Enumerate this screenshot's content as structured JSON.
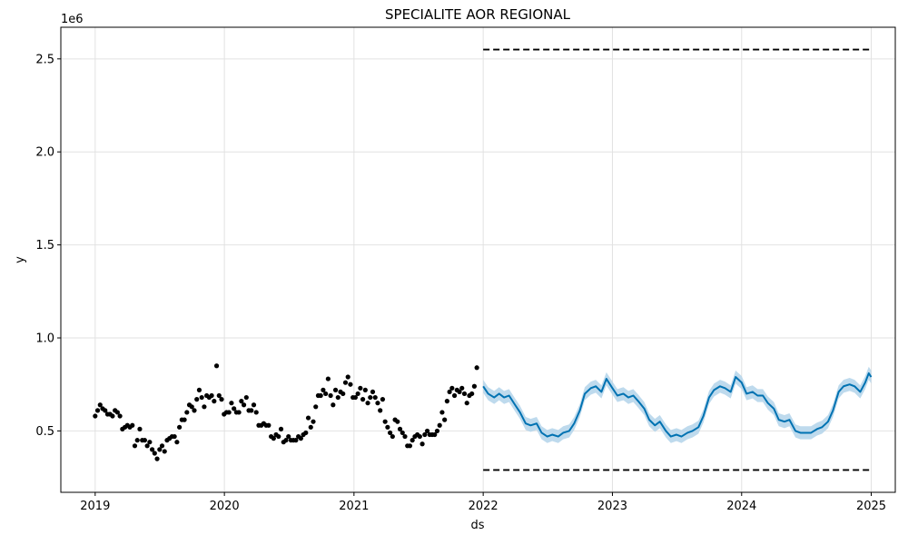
{
  "chart_data": {
    "type": "line",
    "title": "SPECIALITE AOR REGIONAL",
    "xlabel": "ds",
    "ylabel": "y",
    "y_offset_label": "1e6",
    "xlim": [
      "2018-09-26",
      "2025-03-10"
    ],
    "ylim": [
      0.17,
      2.67
    ],
    "x_ticks": [
      "2019",
      "2020",
      "2021",
      "2022",
      "2023",
      "2024",
      "2025"
    ],
    "y_ticks": [
      {
        "value": 0.5,
        "label": "0.5"
      },
      {
        "value": 1.0,
        "label": "1.0"
      },
      {
        "value": 1.5,
        "label": "1.5"
      },
      {
        "value": 2.0,
        "label": "2.0"
      },
      {
        "value": 2.5,
        "label": "2.5"
      }
    ],
    "grid": true,
    "colors": {
      "observed": "#000000",
      "forecast": "#0072B2",
      "interval": "#b3d4ea",
      "cap_floor": "#000000"
    },
    "series": [
      {
        "kind": "observed",
        "points": [
          [
            "2019-01-01",
            0.58
          ],
          [
            "2019-01-08",
            0.61
          ],
          [
            "2019-01-15",
            0.64
          ],
          [
            "2019-01-22",
            0.62
          ],
          [
            "2019-01-29",
            0.61
          ],
          [
            "2019-02-05",
            0.59
          ],
          [
            "2019-02-12",
            0.59
          ],
          [
            "2019-02-19",
            0.58
          ],
          [
            "2019-02-26",
            0.61
          ],
          [
            "2019-03-05",
            0.6
          ],
          [
            "2019-03-12",
            0.58
          ],
          [
            "2019-03-19",
            0.51
          ],
          [
            "2019-03-26",
            0.52
          ],
          [
            "2019-04-02",
            0.53
          ],
          [
            "2019-04-09",
            0.52
          ],
          [
            "2019-04-16",
            0.53
          ],
          [
            "2019-04-23",
            0.42
          ],
          [
            "2019-04-30",
            0.45
          ],
          [
            "2019-05-07",
            0.51
          ],
          [
            "2019-05-14",
            0.45
          ],
          [
            "2019-05-21",
            0.45
          ],
          [
            "2019-05-28",
            0.42
          ],
          [
            "2019-06-04",
            0.44
          ],
          [
            "2019-06-11",
            0.4
          ],
          [
            "2019-06-18",
            0.38
          ],
          [
            "2019-06-25",
            0.35
          ],
          [
            "2019-07-02",
            0.4
          ],
          [
            "2019-07-09",
            0.42
          ],
          [
            "2019-07-16",
            0.39
          ],
          [
            "2019-07-23",
            0.45
          ],
          [
            "2019-07-30",
            0.46
          ],
          [
            "2019-08-06",
            0.47
          ],
          [
            "2019-08-13",
            0.47
          ],
          [
            "2019-08-20",
            0.44
          ],
          [
            "2019-08-27",
            0.52
          ],
          [
            "2019-09-03",
            0.56
          ],
          [
            "2019-09-10",
            0.56
          ],
          [
            "2019-09-17",
            0.6
          ],
          [
            "2019-09-24",
            0.64
          ],
          [
            "2019-10-01",
            0.63
          ],
          [
            "2019-10-08",
            0.61
          ],
          [
            "2019-10-15",
            0.67
          ],
          [
            "2019-10-22",
            0.72
          ],
          [
            "2019-10-29",
            0.68
          ],
          [
            "2019-11-05",
            0.63
          ],
          [
            "2019-11-12",
            0.69
          ],
          [
            "2019-11-19",
            0.68
          ],
          [
            "2019-11-26",
            0.69
          ],
          [
            "2019-12-03",
            0.66
          ],
          [
            "2019-12-10",
            0.85
          ],
          [
            "2019-12-17",
            0.69
          ],
          [
            "2019-12-24",
            0.67
          ],
          [
            "2019-12-31",
            0.59
          ],
          [
            "2020-01-07",
            0.6
          ],
          [
            "2020-01-14",
            0.6
          ],
          [
            "2020-01-21",
            0.65
          ],
          [
            "2020-01-28",
            0.62
          ],
          [
            "2020-02-04",
            0.6
          ],
          [
            "2020-02-11",
            0.6
          ],
          [
            "2020-02-18",
            0.66
          ],
          [
            "2020-02-25",
            0.64
          ],
          [
            "2020-03-03",
            0.68
          ],
          [
            "2020-03-10",
            0.61
          ],
          [
            "2020-03-17",
            0.61
          ],
          [
            "2020-03-24",
            0.64
          ],
          [
            "2020-03-31",
            0.6
          ],
          [
            "2020-04-07",
            0.53
          ],
          [
            "2020-04-14",
            0.53
          ],
          [
            "2020-04-21",
            0.54
          ],
          [
            "2020-04-28",
            0.53
          ],
          [
            "2020-05-05",
            0.53
          ],
          [
            "2020-05-12",
            0.47
          ],
          [
            "2020-05-19",
            0.46
          ],
          [
            "2020-05-26",
            0.48
          ],
          [
            "2020-06-02",
            0.47
          ],
          [
            "2020-06-09",
            0.51
          ],
          [
            "2020-06-16",
            0.44
          ],
          [
            "2020-06-23",
            0.45
          ],
          [
            "2020-06-30",
            0.47
          ],
          [
            "2020-07-07",
            0.45
          ],
          [
            "2020-07-14",
            0.45
          ],
          [
            "2020-07-21",
            0.45
          ],
          [
            "2020-07-28",
            0.47
          ],
          [
            "2020-08-04",
            0.46
          ],
          [
            "2020-08-11",
            0.48
          ],
          [
            "2020-08-18",
            0.49
          ],
          [
            "2020-08-25",
            0.57
          ],
          [
            "2020-09-01",
            0.52
          ],
          [
            "2020-09-08",
            0.55
          ],
          [
            "2020-09-15",
            0.63
          ],
          [
            "2020-09-22",
            0.69
          ],
          [
            "2020-09-29",
            0.69
          ],
          [
            "2020-10-06",
            0.72
          ],
          [
            "2020-10-13",
            0.7
          ],
          [
            "2020-10-20",
            0.78
          ],
          [
            "2020-10-27",
            0.69
          ],
          [
            "2020-11-03",
            0.64
          ],
          [
            "2020-11-10",
            0.72
          ],
          [
            "2020-11-17",
            0.68
          ],
          [
            "2020-11-24",
            0.71
          ],
          [
            "2020-12-01",
            0.7
          ],
          [
            "2020-12-08",
            0.76
          ],
          [
            "2020-12-15",
            0.79
          ],
          [
            "2020-12-22",
            0.75
          ],
          [
            "2020-12-29",
            0.68
          ],
          [
            "2021-01-05",
            0.68
          ],
          [
            "2021-01-12",
            0.7
          ],
          [
            "2021-01-19",
            0.73
          ],
          [
            "2021-01-26",
            0.67
          ],
          [
            "2021-02-02",
            0.72
          ],
          [
            "2021-02-09",
            0.65
          ],
          [
            "2021-02-16",
            0.68
          ],
          [
            "2021-02-23",
            0.71
          ],
          [
            "2021-03-02",
            0.68
          ],
          [
            "2021-03-09",
            0.65
          ],
          [
            "2021-03-16",
            0.61
          ],
          [
            "2021-03-23",
            0.67
          ],
          [
            "2021-03-30",
            0.55
          ],
          [
            "2021-04-06",
            0.52
          ],
          [
            "2021-04-13",
            0.49
          ],
          [
            "2021-04-20",
            0.47
          ],
          [
            "2021-04-27",
            0.56
          ],
          [
            "2021-05-04",
            0.55
          ],
          [
            "2021-05-11",
            0.51
          ],
          [
            "2021-05-18",
            0.49
          ],
          [
            "2021-05-25",
            0.47
          ],
          [
            "2021-06-01",
            0.42
          ],
          [
            "2021-06-08",
            0.42
          ],
          [
            "2021-06-15",
            0.45
          ],
          [
            "2021-06-22",
            0.47
          ],
          [
            "2021-06-29",
            0.48
          ],
          [
            "2021-07-06",
            0.47
          ],
          [
            "2021-07-13",
            0.43
          ],
          [
            "2021-07-20",
            0.48
          ],
          [
            "2021-07-27",
            0.5
          ],
          [
            "2021-08-03",
            0.48
          ],
          [
            "2021-08-10",
            0.48
          ],
          [
            "2021-08-17",
            0.48
          ],
          [
            "2021-08-24",
            0.5
          ],
          [
            "2021-08-31",
            0.53
          ],
          [
            "2021-09-07",
            0.6
          ],
          [
            "2021-09-14",
            0.56
          ],
          [
            "2021-09-21",
            0.66
          ],
          [
            "2021-09-28",
            0.71
          ],
          [
            "2021-10-05",
            0.73
          ],
          [
            "2021-10-12",
            0.69
          ],
          [
            "2021-10-19",
            0.72
          ],
          [
            "2021-10-26",
            0.71
          ],
          [
            "2021-11-02",
            0.73
          ],
          [
            "2021-11-09",
            0.7
          ],
          [
            "2021-11-16",
            0.65
          ],
          [
            "2021-11-23",
            0.69
          ],
          [
            "2021-11-30",
            0.7
          ],
          [
            "2021-12-07",
            0.74
          ],
          [
            "2021-12-14",
            0.84
          ]
        ]
      },
      {
        "kind": "forecast",
        "points": [
          [
            "2022-01-01",
            0.74
          ],
          [
            "2022-01-15",
            0.7
          ],
          [
            "2022-02-01",
            0.68
          ],
          [
            "2022-02-15",
            0.7
          ],
          [
            "2022-03-01",
            0.68
          ],
          [
            "2022-03-15",
            0.69
          ],
          [
            "2022-04-01",
            0.64
          ],
          [
            "2022-04-15",
            0.6
          ],
          [
            "2022-05-01",
            0.54
          ],
          [
            "2022-05-15",
            0.53
          ],
          [
            "2022-06-01",
            0.54
          ],
          [
            "2022-06-15",
            0.49
          ],
          [
            "2022-07-01",
            0.47
          ],
          [
            "2022-07-15",
            0.48
          ],
          [
            "2022-08-01",
            0.47
          ],
          [
            "2022-08-15",
            0.49
          ],
          [
            "2022-09-01",
            0.5
          ],
          [
            "2022-09-15",
            0.54
          ],
          [
            "2022-10-01",
            0.61
          ],
          [
            "2022-10-15",
            0.7
          ],
          [
            "2022-11-01",
            0.73
          ],
          [
            "2022-11-15",
            0.74
          ],
          [
            "2022-12-01",
            0.71
          ],
          [
            "2022-12-15",
            0.78
          ],
          [
            "2023-01-01",
            0.73
          ],
          [
            "2023-01-15",
            0.69
          ],
          [
            "2023-02-01",
            0.7
          ],
          [
            "2023-02-15",
            0.68
          ],
          [
            "2023-03-01",
            0.69
          ],
          [
            "2023-03-15",
            0.66
          ],
          [
            "2023-04-01",
            0.62
          ],
          [
            "2023-04-15",
            0.56
          ],
          [
            "2023-05-01",
            0.53
          ],
          [
            "2023-05-15",
            0.55
          ],
          [
            "2023-06-01",
            0.5
          ],
          [
            "2023-06-15",
            0.47
          ],
          [
            "2023-07-01",
            0.48
          ],
          [
            "2023-07-15",
            0.47
          ],
          [
            "2023-08-01",
            0.49
          ],
          [
            "2023-08-15",
            0.5
          ],
          [
            "2023-09-01",
            0.52
          ],
          [
            "2023-09-15",
            0.58
          ],
          [
            "2023-10-01",
            0.68
          ],
          [
            "2023-10-15",
            0.72
          ],
          [
            "2023-11-01",
            0.74
          ],
          [
            "2023-11-15",
            0.73
          ],
          [
            "2023-12-01",
            0.71
          ],
          [
            "2023-12-15",
            0.79
          ],
          [
            "2024-01-01",
            0.76
          ],
          [
            "2024-01-15",
            0.7
          ],
          [
            "2024-02-01",
            0.71
          ],
          [
            "2024-02-15",
            0.69
          ],
          [
            "2024-03-01",
            0.69
          ],
          [
            "2024-03-15",
            0.65
          ],
          [
            "2024-04-01",
            0.62
          ],
          [
            "2024-04-15",
            0.56
          ],
          [
            "2024-05-01",
            0.55
          ],
          [
            "2024-05-15",
            0.56
          ],
          [
            "2024-06-01",
            0.5
          ],
          [
            "2024-06-15",
            0.49
          ],
          [
            "2024-07-01",
            0.49
          ],
          [
            "2024-07-15",
            0.49
          ],
          [
            "2024-08-01",
            0.51
          ],
          [
            "2024-08-15",
            0.52
          ],
          [
            "2024-09-01",
            0.55
          ],
          [
            "2024-09-15",
            0.61
          ],
          [
            "2024-10-01",
            0.71
          ],
          [
            "2024-10-15",
            0.74
          ],
          [
            "2024-11-01",
            0.75
          ],
          [
            "2024-11-15",
            0.74
          ],
          [
            "2024-12-01",
            0.71
          ],
          [
            "2024-12-15",
            0.76
          ],
          [
            "2024-12-25",
            0.81
          ],
          [
            "2025-01-01",
            0.79
          ]
        ],
        "interval_halfwidth": 0.035
      },
      {
        "kind": "cap",
        "x": [
          "2022-01-01",
          "2025-01-01"
        ],
        "value": 2.55
      },
      {
        "kind": "floor",
        "x": [
          "2022-01-01",
          "2025-01-01"
        ],
        "value": 0.29
      }
    ]
  }
}
